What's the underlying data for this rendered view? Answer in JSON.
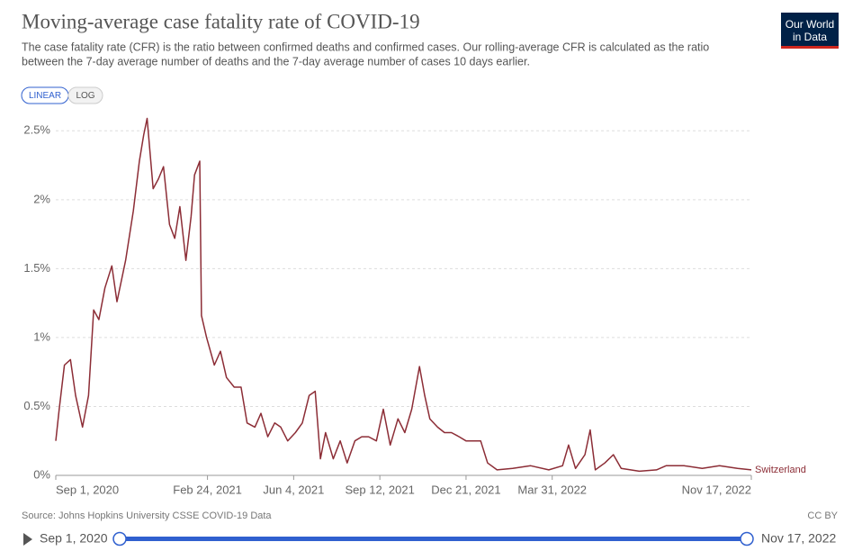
{
  "chart_data": {
    "type": "line",
    "title": "Moving-average case fatality rate of COVID-19",
    "subtitle": [
      "The case fatality rate (CFR) is the ratio between confirmed deaths and confirmed cases. Our rolling-average CFR is calculated as the ratio",
      "between the 7-day average number of deaths and the 7-day average number of cases 10 days earlier."
    ],
    "scale_buttons": [
      "LINEAR",
      "LOG"
    ],
    "logo": [
      "Our World",
      "in Data"
    ],
    "source": "Source: Johns Hopkins University CSSE COVID-19 Data",
    "license": "CC BY",
    "grid": true,
    "x": [
      "2020-09-01",
      "2020-09-05",
      "2020-09-11",
      "2020-09-18",
      "2020-09-24",
      "2020-10-02",
      "2020-10-09",
      "2020-10-15",
      "2020-10-21",
      "2020-10-28",
      "2020-11-05",
      "2020-11-11",
      "2020-11-21",
      "2020-11-30",
      "2020-12-07",
      "2020-12-12",
      "2020-12-16",
      "2020-12-23",
      "2020-12-29",
      "2021-01-04",
      "2021-01-11",
      "2021-01-17",
      "2021-01-23",
      "2021-01-30",
      "2021-02-05",
      "2021-02-09",
      "2021-02-15",
      "2021-02-17",
      "2021-02-23",
      "2021-03-04",
      "2021-03-11",
      "2021-03-18",
      "2021-03-27",
      "2021-04-04",
      "2021-04-11",
      "2021-04-20",
      "2021-04-27",
      "2021-05-05",
      "2021-05-13",
      "2021-05-20",
      "2021-05-28",
      "2021-06-06",
      "2021-06-14",
      "2021-06-22",
      "2021-06-29",
      "2021-07-05",
      "2021-07-11",
      "2021-07-20",
      "2021-07-28",
      "2021-08-05",
      "2021-08-14",
      "2021-08-22",
      "2021-08-30",
      "2021-09-08",
      "2021-09-16",
      "2021-09-24",
      "2021-10-03",
      "2021-10-11",
      "2021-10-19",
      "2021-10-28",
      "2021-11-03",
      "2021-11-09",
      "2021-11-18",
      "2021-11-26",
      "2021-12-04",
      "2021-12-13",
      "2021-12-21",
      "2021-12-29",
      "2022-01-07",
      "2022-01-15",
      "2022-01-26",
      "2022-02-13",
      "2022-03-06",
      "2022-03-27",
      "2022-04-12",
      "2022-04-19",
      "2022-04-27",
      "2022-05-08",
      "2022-05-14",
      "2022-05-20",
      "2022-05-31",
      "2022-06-10",
      "2022-06-19",
      "2022-07-10",
      "2022-07-30",
      "2022-08-10",
      "2022-08-31",
      "2022-09-21",
      "2022-10-11",
      "2022-11-01",
      "2022-11-17"
    ],
    "series": [
      {
        "name": "Switzerland",
        "color": "#8c2d36",
        "values": [
          0.25,
          0.48,
          0.8,
          0.84,
          0.58,
          0.35,
          0.58,
          1.2,
          1.13,
          1.36,
          1.52,
          1.26,
          1.56,
          1.92,
          2.28,
          2.47,
          2.59,
          2.08,
          2.15,
          2.24,
          1.82,
          1.72,
          1.95,
          1.56,
          1.88,
          2.18,
          2.28,
          1.16,
          1.0,
          0.8,
          0.9,
          0.71,
          0.64,
          0.64,
          0.38,
          0.35,
          0.45,
          0.28,
          0.38,
          0.35,
          0.25,
          0.31,
          0.38,
          0.58,
          0.61,
          0.12,
          0.31,
          0.12,
          0.25,
          0.09,
          0.25,
          0.28,
          0.28,
          0.25,
          0.48,
          0.22,
          0.41,
          0.31,
          0.48,
          0.79,
          0.58,
          0.41,
          0.35,
          0.31,
          0.31,
          0.28,
          0.25,
          0.25,
          0.25,
          0.09,
          0.04,
          0.05,
          0.07,
          0.04,
          0.07,
          0.22,
          0.05,
          0.15,
          0.33,
          0.04,
          0.09,
          0.15,
          0.05,
          0.03,
          0.04,
          0.07,
          0.07,
          0.05,
          0.07,
          0.05,
          0.04
        ]
      }
    ],
    "xlim": [
      "2020-09-01",
      "2022-11-17"
    ],
    "xticks": [
      {
        "value": "2020-09-01",
        "label": "Sep 1, 2020"
      },
      {
        "value": "2021-02-24",
        "label": "Feb 24, 2021"
      },
      {
        "value": "2021-06-04",
        "label": "Jun 4, 2021"
      },
      {
        "value": "2021-09-12",
        "label": "Sep 12, 2021"
      },
      {
        "value": "2021-12-21",
        "label": "Dec 21, 2021"
      },
      {
        "value": "2022-03-31",
        "label": "Mar 31, 2022"
      },
      {
        "value": "2022-11-17",
        "label": "Nov 17, 2022"
      }
    ],
    "ylim": [
      0,
      2.6
    ],
    "yticks": [
      {
        "value": 0,
        "label": "0%"
      },
      {
        "value": 0.5,
        "label": "0.5%"
      },
      {
        "value": 1,
        "label": "1%"
      },
      {
        "value": 1.5,
        "label": "1.5%"
      },
      {
        "value": 2,
        "label": "2%"
      },
      {
        "value": 2.5,
        "label": "2.5%"
      }
    ]
  }
}
